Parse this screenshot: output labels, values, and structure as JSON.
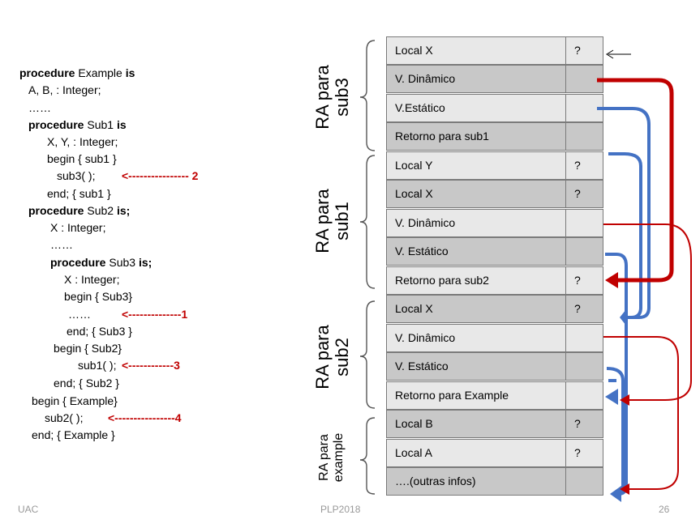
{
  "code": {
    "l1_kw": "procedure",
    "l1_a": "Example",
    "l1_kw2": "is",
    "l2": "A, B, : Integer;",
    "l3": "……",
    "l4_kw": "procedure",
    "l4_a": "Sub1",
    "l4_kw2": "is",
    "l5": "X, Y, : Integer;",
    "l6": "begin  { sub1 }",
    "l7": "sub3( );",
    "l8": "end;  { sub1 }",
    "l9_kw": "procedure",
    "l9_a": "Sub2",
    "l9_kw2": "is;",
    "l10": "X : Integer;",
    "l11": "……",
    "l12_kw": "procedure",
    "l12_a": "Sub3",
    "l12_kw2": "is;",
    "l13": "X : Integer;",
    "l14": "begin  { Sub3}",
    "l15": "……",
    "l16": "end;  { Sub3 }",
    "l17": "begin  { Sub2}",
    "l18": "sub1( );",
    "l19": "end;  { Sub2 }",
    "l20": "begin {  Example}",
    "l21": "sub2( );",
    "l22": "end; { Example }",
    "note2": "<---------------- 2",
    "note1": "<--------------1",
    "note3": "<------------3",
    "note4": "<----------------4"
  },
  "stack": {
    "rows": [
      {
        "label": "Local X",
        "value": "?",
        "shade": "light"
      },
      {
        "label": "V. Dinâmico",
        "value": "",
        "shade": "dark"
      },
      {
        "label": "V.Estático",
        "value": "",
        "shade": "light"
      },
      {
        "label": "Retorno para sub1",
        "value": "",
        "shade": "dark"
      },
      {
        "label": "Local Y",
        "value": "?",
        "shade": "light"
      },
      {
        "label": "Local X",
        "value": "?",
        "shade": "dark"
      },
      {
        "label": "V. Dinâmico",
        "value": "",
        "shade": "light"
      },
      {
        "label": "V. Estático",
        "value": "",
        "shade": "dark"
      },
      {
        "label": "Retorno para sub2",
        "value": "?",
        "shade": "light"
      },
      {
        "label": "Local  X",
        "value": "?",
        "shade": "dark"
      },
      {
        "label": "V. Dinâmico",
        "value": "",
        "shade": "light"
      },
      {
        "label": "V. Estático",
        "value": "",
        "shade": "dark"
      },
      {
        "label": "Retorno para Example",
        "value": "",
        "shade": "light"
      },
      {
        "label": "Local  B",
        "value": "?",
        "shade": "dark"
      },
      {
        "label": "Local  A",
        "value": "?",
        "shade": "light"
      },
      {
        "label": "….(outras infos)",
        "value": "",
        "shade": "dark"
      }
    ]
  },
  "ra_labels": {
    "sub3": [
      "RA para",
      "sub3"
    ],
    "sub1": [
      "RA para",
      "sub1"
    ],
    "sub2": [
      "RA para",
      "sub2"
    ],
    "example": [
      "RA  para",
      "example"
    ]
  },
  "footer": {
    "left": "UAC",
    "center": "PLP2018",
    "right": "26"
  },
  "colors": {
    "dynamic_link": "#c00000",
    "static_link": "#4472c4",
    "static_link_dark": "#2f5597"
  }
}
